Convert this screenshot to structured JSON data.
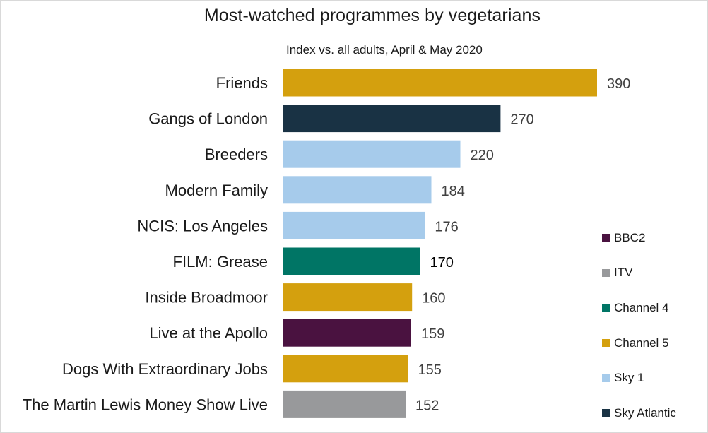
{
  "chart_data": {
    "type": "bar",
    "orientation": "horizontal",
    "title": "Most-watched programmes by vegetarians",
    "subtitle": "Index vs. all adults, April & May 2020",
    "categories": [
      "Friends",
      "Gangs of London",
      "Breeders",
      "Modern Family",
      "NCIS: Los Angeles",
      "FILM: Grease",
      "Inside Broadmoor",
      "Live at the Apollo",
      "Dogs With Extraordinary Jobs",
      "The Martin Lewis Money Show Live"
    ],
    "values": [
      390,
      270,
      220,
      184,
      176,
      170,
      160,
      159,
      155,
      152
    ],
    "value_labels": [
      "390",
      "270",
      "220",
      "184",
      "176",
      "170",
      "160",
      "159",
      "155",
      "152"
    ],
    "channels": [
      "Channel 5",
      "Sky Atlantic",
      "Sky 1",
      "Sky 1",
      "Sky 1",
      "Channel 4",
      "Channel 5",
      "BBC2",
      "Channel 5",
      "ITV"
    ],
    "xlim": [
      0,
      420
    ],
    "grid": false,
    "legend_position": "right",
    "legend": [
      {
        "name": "BBC2",
        "color": "#4a1240"
      },
      {
        "name": "ITV",
        "color": "#98999b"
      },
      {
        "name": "Channel 4",
        "color": "#007565"
      },
      {
        "name": "Channel 5",
        "color": "#d4a00e"
      },
      {
        "name": "Sky 1",
        "color": "#a6cbeb"
      },
      {
        "name": "Sky Atlantic",
        "color": "#193244"
      }
    ]
  }
}
